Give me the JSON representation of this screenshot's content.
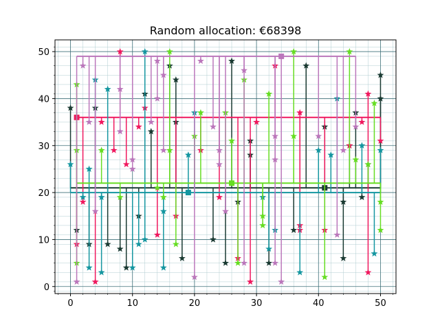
{
  "chart_data": {
    "type": "line",
    "title": "Random allocation: €68398",
    "xlabel": "",
    "ylabel": "",
    "xlim": [
      -2.5,
      52.5
    ],
    "ylim": [
      -1.5,
      52.5
    ],
    "x_ticks": [
      0,
      10,
      20,
      30,
      40,
      50
    ],
    "y_ticks": [
      0,
      10,
      20,
      30,
      40,
      50
    ],
    "grid": true,
    "legend": "none",
    "marker": "star",
    "series": [
      {
        "color": "#1a3a32",
        "center": {
          "x": 41,
          "y": 21
        },
        "points": [
          {
            "x": 0,
            "y": 38
          },
          {
            "x": 1,
            "y": 12
          },
          {
            "x": 3,
            "y": 9
          },
          {
            "x": 4,
            "y": 38
          },
          {
            "x": 6,
            "y": 9
          },
          {
            "x": 8,
            "y": 8
          },
          {
            "x": 9,
            "y": 4
          },
          {
            "x": 11,
            "y": 15
          },
          {
            "x": 12,
            "y": 41
          },
          {
            "x": 13,
            "y": 33
          },
          {
            "x": 16,
            "y": 47
          },
          {
            "x": 17,
            "y": 44
          },
          {
            "x": 17,
            "y": 35
          },
          {
            "x": 18,
            "y": 6
          },
          {
            "x": 23,
            "y": 10
          },
          {
            "x": 25,
            "y": 5
          },
          {
            "x": 26,
            "y": 48
          },
          {
            "x": 27,
            "y": 18
          },
          {
            "x": 29,
            "y": 31
          },
          {
            "x": 29,
            "y": 28
          },
          {
            "x": 32,
            "y": 5
          },
          {
            "x": 36,
            "y": 12
          },
          {
            "x": 38,
            "y": 47
          },
          {
            "x": 41,
            "y": 34
          },
          {
            "x": 44,
            "y": 18
          },
          {
            "x": 44,
            "y": 6
          },
          {
            "x": 45,
            "y": 30
          },
          {
            "x": 46,
            "y": 37
          },
          {
            "x": 47,
            "y": 19
          },
          {
            "x": 48,
            "y": 26
          },
          {
            "x": 50,
            "y": 45
          },
          {
            "x": 50,
            "y": 40
          }
        ]
      },
      {
        "color": "#f0185e",
        "center": {
          "x": 1,
          "y": 36
        },
        "points": [
          {
            "x": 1,
            "y": 9
          },
          {
            "x": 2,
            "y": 18
          },
          {
            "x": 4,
            "y": 1
          },
          {
            "x": 5,
            "y": 35
          },
          {
            "x": 7,
            "y": 29
          },
          {
            "x": 8,
            "y": 50
          },
          {
            "x": 9,
            "y": 26
          },
          {
            "x": 11,
            "y": 34
          },
          {
            "x": 12,
            "y": 38
          },
          {
            "x": 14,
            "y": 11
          },
          {
            "x": 17,
            "y": 15
          },
          {
            "x": 21,
            "y": 29
          },
          {
            "x": 24,
            "y": 19
          },
          {
            "x": 27,
            "y": 6
          },
          {
            "x": 29,
            "y": 1
          },
          {
            "x": 30,
            "y": 35
          },
          {
            "x": 33,
            "y": 47
          },
          {
            "x": 37,
            "y": 37
          },
          {
            "x": 37,
            "y": 13
          },
          {
            "x": 37,
            "y": 12
          },
          {
            "x": 41,
            "y": 12
          },
          {
            "x": 45,
            "y": 30
          },
          {
            "x": 47,
            "y": 35
          },
          {
            "x": 48,
            "y": 41
          },
          {
            "x": 48,
            "y": 3
          },
          {
            "x": 50,
            "y": 31
          }
        ]
      },
      {
        "color": "#1496a0",
        "center": {
          "x": 19,
          "y": 20
        },
        "points": [
          {
            "x": 0,
            "y": 26
          },
          {
            "x": 2,
            "y": 19
          },
          {
            "x": 3,
            "y": 25
          },
          {
            "x": 3,
            "y": 4
          },
          {
            "x": 4,
            "y": 44
          },
          {
            "x": 5,
            "y": 19
          },
          {
            "x": 5,
            "y": 3
          },
          {
            "x": 6,
            "y": 42
          },
          {
            "x": 10,
            "y": 4
          },
          {
            "x": 11,
            "y": 9
          },
          {
            "x": 12,
            "y": 50
          },
          {
            "x": 12,
            "y": 10
          },
          {
            "x": 15,
            "y": 4
          },
          {
            "x": 15,
            "y": 16
          },
          {
            "x": 19,
            "y": 28
          },
          {
            "x": 20,
            "y": 37
          },
          {
            "x": 31,
            "y": 19
          },
          {
            "x": 32,
            "y": 8
          },
          {
            "x": 33,
            "y": 12
          },
          {
            "x": 37,
            "y": 3
          },
          {
            "x": 40,
            "y": 29
          },
          {
            "x": 42,
            "y": 28
          },
          {
            "x": 43,
            "y": 40
          },
          {
            "x": 47,
            "y": 30
          },
          {
            "x": 49,
            "y": 7
          },
          {
            "x": 50,
            "y": 29
          }
        ]
      },
      {
        "color": "#66dd22",
        "center": {
          "x": 26,
          "y": 22
        },
        "points": [
          {
            "x": 1,
            "y": 43
          },
          {
            "x": 1,
            "y": 29
          },
          {
            "x": 1,
            "y": 5
          },
          {
            "x": 5,
            "y": 29
          },
          {
            "x": 8,
            "y": 19
          },
          {
            "x": 14,
            "y": 21
          },
          {
            "x": 15,
            "y": 19
          },
          {
            "x": 16,
            "y": 50
          },
          {
            "x": 16,
            "y": 29
          },
          {
            "x": 17,
            "y": 9
          },
          {
            "x": 20,
            "y": 32
          },
          {
            "x": 21,
            "y": 37
          },
          {
            "x": 25,
            "y": 37
          },
          {
            "x": 26,
            "y": 31
          },
          {
            "x": 27,
            "y": 5
          },
          {
            "x": 28,
            "y": 44
          },
          {
            "x": 31,
            "y": 13
          },
          {
            "x": 31,
            "y": 15
          },
          {
            "x": 32,
            "y": 41
          },
          {
            "x": 36,
            "y": 50
          },
          {
            "x": 36,
            "y": 32
          },
          {
            "x": 41,
            "y": 2
          },
          {
            "x": 45,
            "y": 50
          },
          {
            "x": 46,
            "y": 27
          },
          {
            "x": 48,
            "y": 26
          },
          {
            "x": 49,
            "y": 39
          },
          {
            "x": 50,
            "y": 18
          },
          {
            "x": 50,
            "y": 12
          }
        ]
      },
      {
        "color": "#bb77bb",
        "center": {
          "x": 34,
          "y": 49
        },
        "points": [
          {
            "x": 1,
            "y": 1
          },
          {
            "x": 2,
            "y": 47
          },
          {
            "x": 3,
            "y": 35
          },
          {
            "x": 4,
            "y": 16
          },
          {
            "x": 8,
            "y": 42
          },
          {
            "x": 8,
            "y": 33
          },
          {
            "x": 10,
            "y": 27
          },
          {
            "x": 10,
            "y": 25
          },
          {
            "x": 13,
            "y": 35
          },
          {
            "x": 14,
            "y": 48
          },
          {
            "x": 14,
            "y": 40
          },
          {
            "x": 15,
            "y": 45
          },
          {
            "x": 15,
            "y": 29
          },
          {
            "x": 20,
            "y": 2
          },
          {
            "x": 21,
            "y": 48
          },
          {
            "x": 23,
            "y": 34
          },
          {
            "x": 24,
            "y": 29
          },
          {
            "x": 24,
            "y": 26
          },
          {
            "x": 25,
            "y": 16
          },
          {
            "x": 28,
            "y": 46
          },
          {
            "x": 28,
            "y": 5
          },
          {
            "x": 33,
            "y": 32
          },
          {
            "x": 33,
            "y": 27
          },
          {
            "x": 33,
            "y": 5
          },
          {
            "x": 34,
            "y": 1
          },
          {
            "x": 40,
            "y": 32
          },
          {
            "x": 43,
            "y": 11
          },
          {
            "x": 44,
            "y": 29
          },
          {
            "x": 46,
            "y": 34
          }
        ]
      }
    ]
  }
}
